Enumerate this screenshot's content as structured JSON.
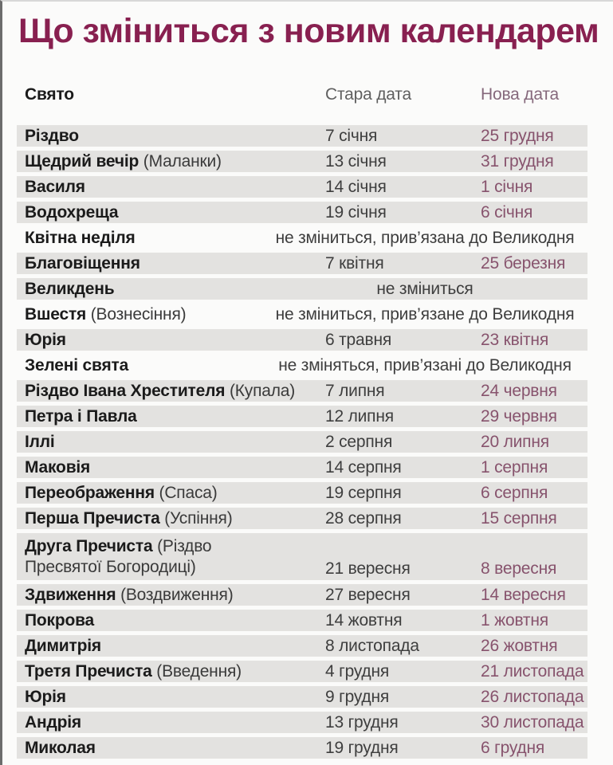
{
  "title": "Що зміниться з новим календарем",
  "colors": {
    "title": "#882050",
    "row_band": "#e3e2e0",
    "holiday_text": "#1b1b1b",
    "old_date_text": "#3e3e3e",
    "new_date_text": "#87536d",
    "header_old": "#5f5f5f",
    "header_new": "#85687b"
  },
  "table": {
    "headers": {
      "holiday": "Свято",
      "old_date": "Стара дата",
      "new_date": "Нова дата"
    },
    "rows": [
      {
        "name": "Різдво",
        "old": "7 січня",
        "new": "25 грудня",
        "shaded": true
      },
      {
        "name": "Щедрий вечір",
        "paren": "(Маланки)",
        "old": "13 січня",
        "new": "31 грудня",
        "shaded": true
      },
      {
        "name": "Василя",
        "old": "14 січня",
        "new": "1 січня",
        "shaded": true
      },
      {
        "name": "Водохреща",
        "old": "19 січня",
        "new": "6 січня",
        "shaded": true
      },
      {
        "name": "Квітна неділя",
        "note": "не зміниться, прив’язана до Великодня",
        "shaded": false
      },
      {
        "name": "Благовіщення",
        "old": "7 квітня",
        "new": "25 березня",
        "shaded": true
      },
      {
        "name": "Великдень",
        "note": "не зміниться",
        "shaded": true
      },
      {
        "name": "Вшестя",
        "paren": "(Вознесіння)",
        "note": "не зміниться, прив’язане до Великодня",
        "shaded": false
      },
      {
        "name": "Юрія",
        "old": "6 травня",
        "new": "23 квітня",
        "shaded": true
      },
      {
        "name": "Зелені свята",
        "note": "не зміняться, прив’язані до Великодня",
        "shaded": false
      },
      {
        "name": "Різдво Івана Хрестителя",
        "paren": "(Купала)",
        "old": "7 липня",
        "new": "24 червня",
        "shaded": true
      },
      {
        "name": "Петра і Павла",
        "old": "12 липня",
        "new": "29 червня",
        "shaded": true
      },
      {
        "name": "Іллі",
        "old": "2 серпня",
        "new": "20 липня",
        "shaded": true
      },
      {
        "name": "Маковія",
        "old": "14 серпня",
        "new": "1 серпня",
        "shaded": true
      },
      {
        "name": "Переображення",
        "paren": "(Спаса)",
        "old": "19 серпня",
        "new": "6 серпня",
        "shaded": true
      },
      {
        "name": "Перша Пречиста",
        "paren": "(Успіння)",
        "old": "28 серпня",
        "new": "15 серпня",
        "shaded": true
      },
      {
        "name": "Друга Пречиста",
        "paren": "(Різдво\nПресвятої Богородиці)",
        "old": "21 вересня",
        "new": "8 вересня",
        "shaded": true,
        "tall": true
      },
      {
        "name": "Здвиження",
        "paren": "(Воздвиження)",
        "old": "27 вересня",
        "new": "14 вересня",
        "shaded": true
      },
      {
        "name": "Покрова",
        "old": "14 жовтня",
        "new": "1 жовтня",
        "shaded": true
      },
      {
        "name": "Димитрія",
        "old": "8 листопада",
        "new": "26 жовтня",
        "shaded": true
      },
      {
        "name": "Третя Пречиста",
        "paren": "(Введення)",
        "old": "4 грудня",
        "new": "21 листопада",
        "shaded": true
      },
      {
        "name": "Юрія",
        "old": "9 грудня",
        "new": "26 листопада",
        "shaded": true
      },
      {
        "name": "Андрія",
        "old": "13 грудня",
        "new": "30 листопада",
        "shaded": true
      },
      {
        "name": "Миколая",
        "old": "19 грудня",
        "new": "6 грудня",
        "shaded": true
      }
    ]
  }
}
